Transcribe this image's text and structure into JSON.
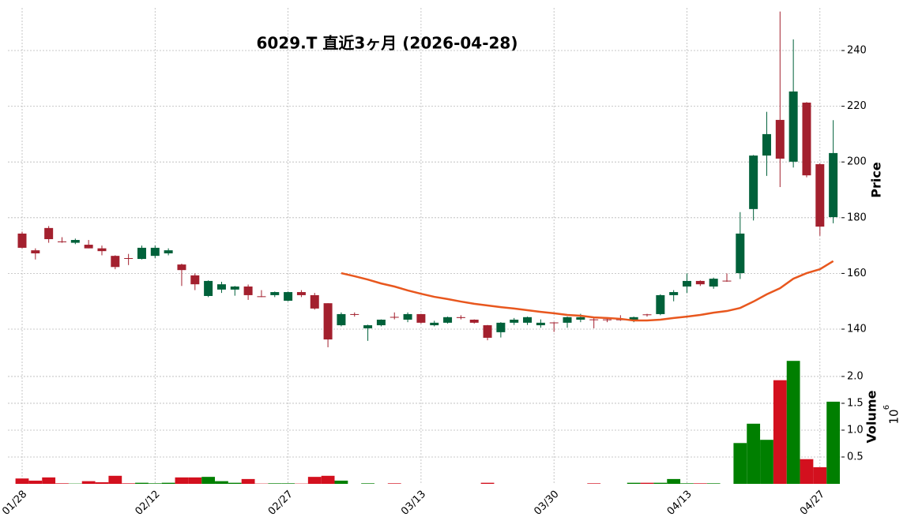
{
  "chart_data": {
    "type": "candlestick",
    "title": "6029.T  直近3ヶ月  (2026-04-28)",
    "categories": [
      "01/28",
      null,
      null,
      null,
      null,
      null,
      null,
      null,
      null,
      null,
      "02/12",
      null,
      null,
      null,
      null,
      null,
      null,
      null,
      null,
      null,
      "02/27",
      null,
      null,
      null,
      null,
      null,
      null,
      null,
      null,
      null,
      "03/13",
      null,
      null,
      null,
      null,
      null,
      null,
      null,
      null,
      null,
      "03/30",
      null,
      null,
      null,
      null,
      null,
      null,
      null,
      null,
      null,
      "04/13",
      null,
      null,
      null,
      null,
      null,
      null,
      null,
      null,
      null,
      "04/27",
      null
    ],
    "open": [
      174.3,
      168.3,
      176.3,
      171.5,
      171,
      170.3,
      169,
      166.3,
      165.5,
      165.2,
      166.3,
      167.2,
      163.2,
      159.3,
      151.9,
      154.2,
      154.2,
      155.3,
      151.8,
      152.2,
      150.2,
      153.3,
      152.2,
      149.3,
      141.4,
      145.4,
      140.3,
      141.4,
      144.4,
      143.4,
      145.4,
      141.4,
      142.3,
      144.3,
      143.4,
      141.4,
      138.9,
      142.3,
      142.3,
      141.4,
      142.4,
      142.3,
      143.4,
      143.5,
      143.5,
      143.5,
      143.4,
      145.3,
      145.4,
      152.2,
      155.3,
      157.3,
      155.3,
      157.4,
      160.1,
      183.1,
      202.3,
      215.1,
      200.1,
      221.3,
      199.2,
      180.2
    ],
    "high": [
      175,
      169,
      177,
      173,
      172.5,
      172,
      170,
      166.5,
      167,
      170,
      170,
      169,
      163.5,
      160,
      157.5,
      157,
      155.5,
      156,
      154,
      153.5,
      153.5,
      154,
      153,
      149.3,
      146,
      146,
      141.6,
      143.5,
      146,
      146,
      145.5,
      143,
      144.5,
      145,
      143.5,
      141.5,
      142.5,
      144,
      144.5,
      143.5,
      142.5,
      144.5,
      145.5,
      144,
      144,
      145,
      144.5,
      145.5,
      152.5,
      154,
      160,
      157.5,
      158.5,
      160,
      182,
      202.5,
      218,
      254,
      244,
      221.5,
      199.5,
      215
    ],
    "low": [
      169,
      165,
      171,
      171,
      170.5,
      169,
      166.5,
      161.5,
      163,
      165,
      165.5,
      166.5,
      155.5,
      154,
      151.5,
      153,
      152,
      150.5,
      151.5,
      151.5,
      150,
      151.5,
      147,
      133.5,
      141,
      144.5,
      135.8,
      141,
      143.5,
      142.5,
      142,
      141,
      142,
      143.5,
      142,
      136,
      137,
      141.5,
      141.5,
      140.5,
      139,
      140.5,
      142.5,
      140.3,
      142.5,
      143,
      142.5,
      144.5,
      145,
      150,
      153,
      155.5,
      154.5,
      157,
      158,
      179,
      195,
      191,
      198,
      194.5,
      173.5,
      178
    ],
    "close": [
      169.2,
      167.2,
      172.3,
      171.2,
      172,
      169,
      168,
      162.3,
      165.3,
      169.2,
      169.2,
      168.3,
      161.2,
      156.1,
      157.3,
      156.1,
      155.3,
      152.2,
      151.6,
      153.3,
      153.3,
      152.2,
      147.4,
      136.3,
      145.4,
      145.2,
      141.4,
      143.4,
      144.2,
      145.4,
      142.3,
      142.3,
      144.3,
      144,
      142.3,
      136.9,
      142.3,
      143.4,
      144.3,
      142.3,
      142.2,
      144.3,
      144.3,
      143.3,
      143.2,
      143.3,
      144.3,
      145.1,
      152.2,
      153.3,
      157.3,
      156.1,
      158.1,
      157.2,
      174.3,
      202.3,
      210,
      201.2,
      225.3,
      195.2,
      176.8,
      203.2
    ],
    "up_color": "#00613a",
    "down_color": "#a3202e",
    "ma": {
      "color": "#e8571e",
      "values": [
        null,
        null,
        null,
        null,
        null,
        null,
        null,
        null,
        null,
        null,
        null,
        null,
        null,
        null,
        null,
        null,
        null,
        null,
        null,
        null,
        null,
        null,
        null,
        null,
        160.1,
        159.0,
        157.8,
        156.4,
        155.3,
        153.9,
        152.7,
        151.6,
        150.8,
        149.9,
        149.1,
        148.5,
        147.9,
        147.4,
        146.8,
        146.2,
        145.7,
        145.1,
        144.8,
        144.2,
        144.0,
        143.7,
        143.1,
        143.1,
        143.4,
        144.0,
        144.5,
        145.1,
        145.9,
        146.5,
        147.6,
        149.9,
        152.5,
        154.7,
        158.1,
        160.1,
        161.5,
        164.4
      ]
    },
    "volume": {
      "up_color": "#007f00",
      "down_color": "#d3101e",
      "values": [
        0.1,
        0.06,
        0.12,
        0.01,
        0.005,
        0.05,
        0.03,
        0.15,
        0.01,
        0.02,
        0.01,
        0.02,
        0.12,
        0.12,
        0.13,
        0.05,
        0.02,
        0.09,
        0.005,
        0.01,
        0.01,
        0.005,
        0.13,
        0.15,
        0.06,
        0,
        0.01,
        0,
        0.01,
        0,
        0,
        0,
        0,
        0,
        0,
        0.02,
        0,
        0,
        0,
        0,
        0,
        0,
        0,
        0.01,
        0,
        0,
        0.02,
        0.02,
        0.02,
        0.09,
        0.01,
        0.01,
        0.01,
        0,
        0.76,
        1.12,
        0.82,
        1.93,
        2.29,
        0.46,
        0.31,
        1.53
      ]
    },
    "ylabel": "Price",
    "y2label": "Volume",
    "y2_offset_base": "10",
    "y2_offset_exponent": "6",
    "ylim": [
      131.5,
      255.3
    ],
    "yticks": [
      140,
      160,
      180,
      200,
      220,
      240
    ],
    "y2lim": [
      0,
      2.44
    ],
    "y2ticks": [
      0.5,
      {
        "value": 1,
        "label": "1.0"
      },
      1.5,
      {
        "value": 2,
        "label": "2.0"
      }
    ],
    "grid": true
  }
}
